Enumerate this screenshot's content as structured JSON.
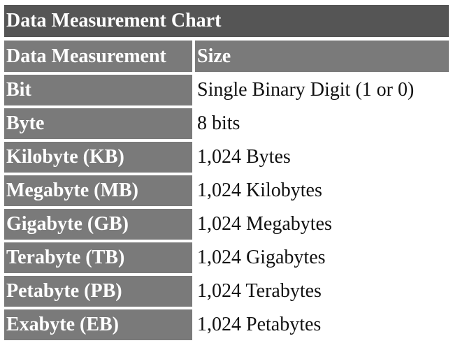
{
  "title": "Data Measurement Chart",
  "columns": [
    "Data Measurement",
    "Size"
  ],
  "rows": [
    {
      "measurement": "Bit",
      "size": "Single Binary Digit (1 or 0)"
    },
    {
      "measurement": "Byte",
      "size": "8 bits"
    },
    {
      "measurement": "Kilobyte (KB)",
      "size": "1,024 Bytes"
    },
    {
      "measurement": "Megabyte (MB)",
      "size": "1,024 Kilobytes"
    },
    {
      "measurement": "Gigabyte (GB)",
      "size": "1,024 Megabytes"
    },
    {
      "measurement": "Terabyte (TB)",
      "size": "1,024 Gigabytes"
    },
    {
      "measurement": "Petabyte (PB)",
      "size": "1,024 Terabytes"
    },
    {
      "measurement": "Exabyte (EB)",
      "size": "1,024 Petabytes"
    }
  ],
  "colors": {
    "title_background": "#555555",
    "label_background": "#7a7a7a",
    "value_background": "#ffffff",
    "label_text": "#ffffff",
    "value_text": "#111111"
  }
}
